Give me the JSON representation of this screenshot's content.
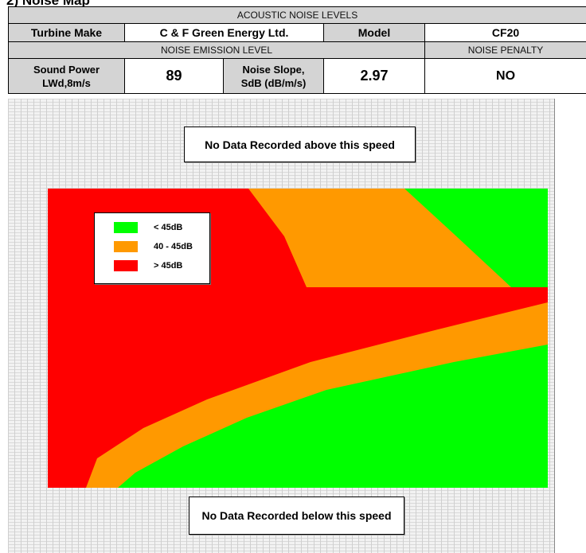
{
  "section_title": "2) Noise Map",
  "table": {
    "acoustic_header": "ACOUSTIC NOISE LEVELS",
    "turbine_make_label": "Turbine Make",
    "turbine_make_value": "C & F Green Energy Ltd.",
    "model_label": "Model",
    "model_value": "CF20",
    "emission_header": "NOISE EMISSION LEVEL",
    "penalty_header": "NOISE PENALTY",
    "sound_power_label_line1": "Sound Power",
    "sound_power_label_line2": "LWd,8m/s",
    "sound_power_value": "89",
    "noise_slope_label_line1": "Noise Slope,",
    "noise_slope_label_line2": "SdB (dB/m/s)",
    "noise_slope_value": "2.97",
    "penalty_value": "NO"
  },
  "notes": {
    "above": "No Data Recorded above this speed",
    "below": "No Data Recorded below this speed"
  },
  "chart_data": {
    "type": "heatmap",
    "title": "",
    "xlabel": "",
    "ylabel": "",
    "legend_position": "top-left",
    "grid": true,
    "categories": [
      "< 45dB",
      "40 - 45dB",
      "> 45dB"
    ],
    "colors": {
      "< 45dB": "#00ff00",
      "40 - 45dB": "#ff9900",
      "> 45dB": "#ff0000"
    },
    "regions_note": "Upper band: red on the left, orange band, green on the right. Lower band: red upper-left, curved orange band, green lower-right."
  }
}
